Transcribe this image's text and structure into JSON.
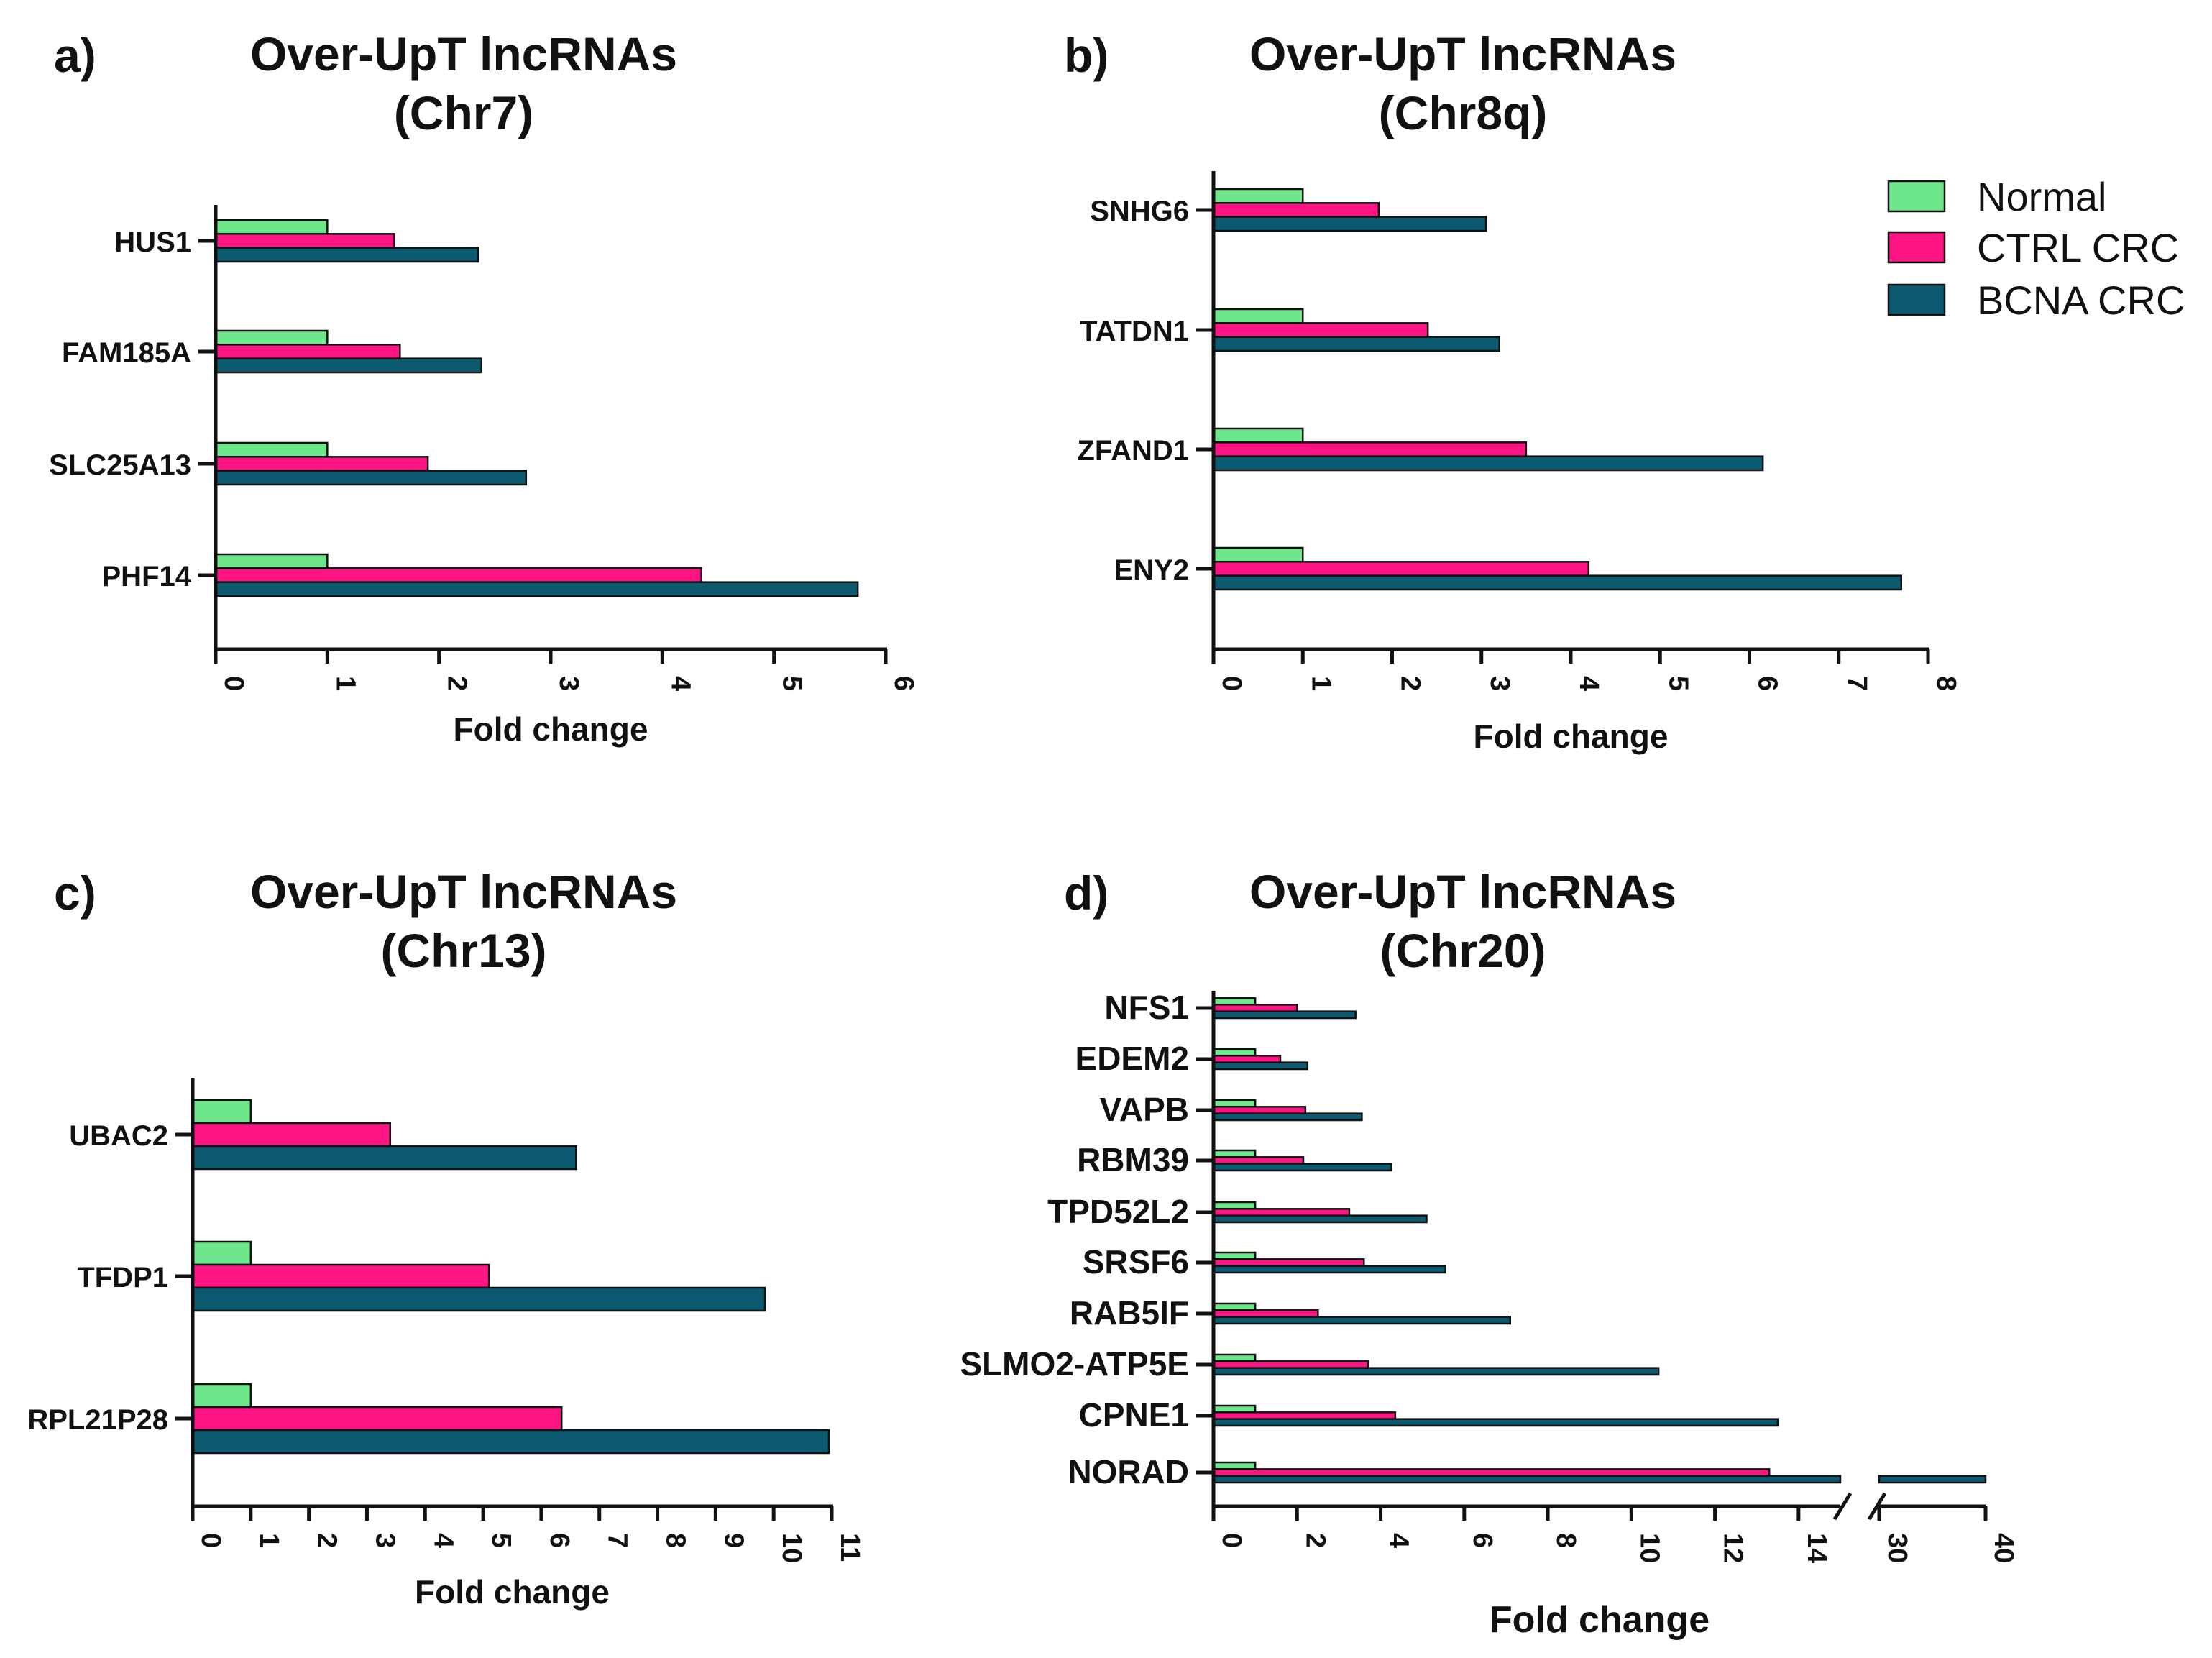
{
  "legend": {
    "series": [
      "Normal",
      "CTRL CRC",
      "BCNA CRC"
    ],
    "colors": [
      "#6ee68c",
      "#ff1483",
      "#0b5a70"
    ]
  },
  "chart_data": [
    {
      "type": "bar",
      "orientation": "horizontal",
      "panel": "a)",
      "title": [
        "Over-UpT lncRNAs",
        "(Chr7)"
      ],
      "xlabel": "Fold change",
      "categories": [
        "HUS1",
        "FAM185A",
        "SLC25A13",
        "PHF14"
      ],
      "series": [
        {
          "name": "Normal",
          "values": [
            1,
            1,
            1,
            1
          ]
        },
        {
          "name": "CTRL CRC",
          "values": [
            1.6,
            1.65,
            1.9,
            4.35
          ]
        },
        {
          "name": "BCNA CRC",
          "values": [
            2.35,
            2.38,
            2.78,
            5.75
          ]
        }
      ],
      "xlim": [
        0,
        6
      ],
      "xticks": [
        0,
        1,
        2,
        3,
        4,
        5,
        6
      ]
    },
    {
      "type": "bar",
      "orientation": "horizontal",
      "panel": "b)",
      "title": [
        "Over-UpT lncRNAs",
        "(Chr8q)"
      ],
      "xlabel": "Fold change",
      "categories": [
        "SNHG6",
        "TATDN1",
        "ZFAND1",
        "ENY2"
      ],
      "series": [
        {
          "name": "Normal",
          "values": [
            1,
            1,
            1,
            1
          ]
        },
        {
          "name": "CTRL CRC",
          "values": [
            1.85,
            2.4,
            3.5,
            4.2
          ]
        },
        {
          "name": "BCNA CRC",
          "values": [
            3.05,
            3.2,
            6.15,
            7.7
          ]
        }
      ],
      "xlim": [
        0,
        8
      ],
      "xticks": [
        0,
        1,
        2,
        3,
        4,
        5,
        6,
        7,
        8
      ]
    },
    {
      "type": "bar",
      "orientation": "horizontal",
      "panel": "c)",
      "title": [
        "Over-UpT lncRNAs",
        "(Chr13)"
      ],
      "xlabel": "Fold change",
      "categories": [
        "UBAC2",
        "TFDP1",
        "RPL21P28"
      ],
      "series": [
        {
          "name": "Normal",
          "values": [
            1,
            1,
            1
          ]
        },
        {
          "name": "CTRL CRC",
          "values": [
            3.4,
            5.1,
            6.35
          ]
        },
        {
          "name": "BCNA CRC",
          "values": [
            6.6,
            9.85,
            10.95
          ]
        }
      ],
      "xlim": [
        0,
        11
      ],
      "xticks": [
        0,
        1,
        2,
        3,
        4,
        5,
        6,
        7,
        8,
        9,
        10,
        11
      ]
    },
    {
      "type": "bar",
      "orientation": "horizontal",
      "panel": "d)",
      "title": [
        "Over-UpT lncRNAs",
        "(Chr20)"
      ],
      "xlabel": "Fold change",
      "categories": [
        "NFS1",
        "EDEM2",
        "VAPB",
        "RBM39",
        "TPD52L2",
        "SRSF6",
        "RAB5IF",
        "SLMO2-ATP5E",
        "CPNE1",
        "NORAD"
      ],
      "series": [
        {
          "name": "Normal",
          "values": [
            1,
            1,
            1,
            1,
            1,
            1,
            1,
            1,
            1,
            1
          ]
        },
        {
          "name": "CTRL CRC",
          "values": [
            2,
            1.6,
            2.2,
            2.15,
            3.25,
            3.6,
            2.5,
            3.7,
            4.35,
            13.3
          ]
        },
        {
          "name": "BCNA CRC",
          "values": [
            3.4,
            2.25,
            3.55,
            4.25,
            5.1,
            5.55,
            7.1,
            10.65,
            13.5,
            40
          ]
        }
      ],
      "axis_break": {
        "segment1": [
          0,
          15
        ],
        "segment2": [
          30,
          40
        ]
      },
      "xticks": [
        0,
        2,
        4,
        6,
        8,
        10,
        12,
        14,
        30,
        40
      ]
    }
  ]
}
